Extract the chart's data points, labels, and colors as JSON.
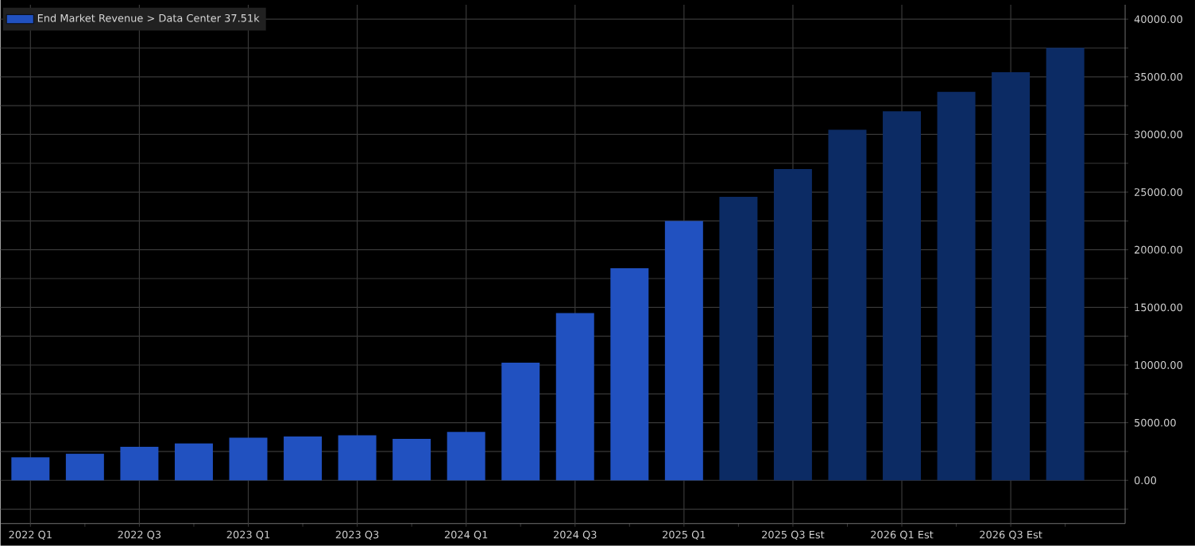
{
  "chart_data": {
    "type": "bar",
    "categories": [
      "2022 Q1",
      null,
      "2022 Q3",
      null,
      "2023 Q1",
      null,
      "2023 Q3",
      null,
      "2024 Q1",
      null,
      "2024 Q3",
      null,
      "2025 Q1",
      null,
      "2025 Q3 Est",
      null,
      "2026 Q1 Est",
      null,
      "2026 Q3 Est",
      null
    ],
    "series": [
      {
        "name": "End Market Revenue > Data Center 37.51k",
        "color": "#2151c0",
        "colors": [
          "#2151c0",
          "#2151c0",
          "#2151c0",
          "#2151c0",
          "#2151c0",
          "#2151c0",
          "#2151c0",
          "#2151c0",
          "#2151c0",
          "#2151c0",
          "#2151c0",
          "#2151c0",
          "#2151c0",
          "#0c2b64",
          "#0c2b64",
          "#0c2b64",
          "#0c2b64",
          "#0c2b64",
          "#0c2b64",
          "#0c2b64"
        ],
        "values": [
          2000,
          2300,
          2900,
          3200,
          3700,
          3800,
          3900,
          3600,
          4200,
          10200,
          14500,
          18400,
          22500,
          24600,
          27000,
          30400,
          32000,
          33700,
          35400,
          37510
        ]
      }
    ],
    "ylim": [
      -3750,
      41250
    ],
    "yticks": [
      {
        "value": -2500,
        "label": null
      },
      {
        "value": 0,
        "label": "0.00"
      },
      {
        "value": 2500,
        "label": null
      },
      {
        "value": 5000,
        "label": "5000.00"
      },
      {
        "value": 7500,
        "label": null
      },
      {
        "value": 10000,
        "label": "10000.00"
      },
      {
        "value": 12500,
        "label": null
      },
      {
        "value": 15000,
        "label": "15000.00"
      },
      {
        "value": 17500,
        "label": null
      },
      {
        "value": 20000,
        "label": "20000.00"
      },
      {
        "value": 22500,
        "label": null
      },
      {
        "value": 25000,
        "label": "25000.00"
      },
      {
        "value": 27500,
        "label": null
      },
      {
        "value": 30000,
        "label": "30000.00"
      },
      {
        "value": 32500,
        "label": null
      },
      {
        "value": 35000,
        "label": "35000.00"
      },
      {
        "value": 37500,
        "label": null
      },
      {
        "value": 40000,
        "label": "40000.00"
      }
    ],
    "grid": true,
    "legend": "top left"
  }
}
